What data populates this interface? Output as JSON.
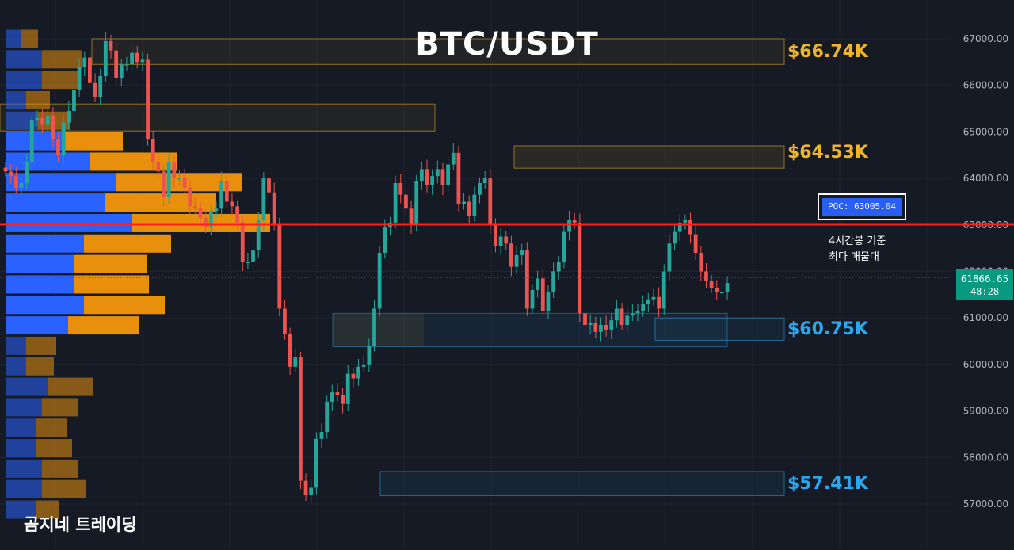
{
  "title": "BTC/USDT",
  "brand": "곰지네 트레이딩",
  "current_price": {
    "price": "61866.65",
    "countdown": "48:28"
  },
  "poc": {
    "label": "POC: 63005.04",
    "value": 63005.04,
    "note_line1": "4시간봉 기준",
    "note_line2": "최다 매물대"
  },
  "levels": [
    {
      "label": "$66.74K",
      "color": "#f0b429"
    },
    {
      "label": "$64.53K",
      "color": "#f0b429"
    },
    {
      "label": "$60.75K",
      "color": "#29a8f0"
    },
    {
      "label": "$57.41K",
      "color": "#29a8f0"
    }
  ],
  "colors": {
    "background": "#161a25",
    "up": "#26a69a",
    "down": "#ef5350",
    "poc_line": "#ff1f1f",
    "vp_up": "#2962ff",
    "vp_down": "#e8900c"
  },
  "chart_data": {
    "type": "candlestick",
    "title": "BTC/USDT",
    "ylim": [
      56700,
      67250
    ],
    "y_ticks": [
      "67000.00",
      "66000.00",
      "65000.00",
      "64000.00",
      "63000.00",
      "62000.00",
      "61000.00",
      "60000.00",
      "59000.00",
      "58000.00",
      "57000.00"
    ],
    "candles_close": [
      64150,
      64050,
      63800,
      63900,
      64350,
      65250,
      65300,
      65150,
      65350,
      64850,
      64500,
      65200,
      65450,
      65900,
      66400,
      66600,
      66050,
      65750,
      66200,
      66950,
      66750,
      66150,
      66450,
      66450,
      66700,
      66500,
      66550,
      64850,
      64350,
      64150,
      63600,
      64350,
      64000,
      64000,
      63800,
      63400,
      63350,
      63150,
      62950,
      63300,
      63350,
      63950,
      63500,
      63400,
      63050,
      62200,
      62200,
      62450,
      63100,
      64000,
      63700,
      63000,
      61200,
      60650,
      59950,
      60150,
      57500,
      57200,
      57350,
      58400,
      58550,
      59200,
      59400,
      59350,
      59150,
      59800,
      59700,
      59950,
      60000,
      60400,
      61200,
      62400,
      62950,
      63050,
      63900,
      63650,
      63350,
      63000,
      63950,
      64200,
      63850,
      64050,
      64200,
      63850,
      64300,
      64550,
      63450,
      63500,
      63200,
      63650,
      63900,
      64000,
      63000,
      62550,
      62750,
      62600,
      62100,
      62350,
      62450,
      61200,
      61600,
      61850,
      61150,
      61550,
      62000,
      62200,
      62850,
      63100,
      63050,
      61100,
      60850,
      60900,
      60700,
      60850,
      60750,
      60950,
      61200,
      60850,
      61050,
      61100,
      61150,
      61300,
      61400,
      61450,
      61200,
      62000,
      62600,
      62850,
      63050,
      63100,
      62800,
      62400,
      62000,
      61800,
      61650,
      61550,
      61550,
      61750
    ],
    "value_area_boxes": [
      {
        "top": 67000,
        "bottom": 66450
      },
      {
        "top": 65600,
        "bottom": 65020
      },
      {
        "top": 64700,
        "bottom": 64220
      },
      {
        "top": 61100,
        "bottom": 60380
      },
      {
        "top": 61000,
        "bottom": 60520
      },
      {
        "top": 57700,
        "bottom": 57180
      }
    ],
    "volume_profile": [
      {
        "price": 67000,
        "buy": 18,
        "sell": 22
      },
      {
        "price": 66560,
        "buy": 45,
        "sell": 50
      },
      {
        "price": 66120,
        "buy": 45,
        "sell": 45
      },
      {
        "price": 65680,
        "buy": 25,
        "sell": 30
      },
      {
        "price": 65240,
        "buy": 40,
        "sell": 40
      },
      {
        "price": 64800,
        "buy": 72,
        "sell": 75
      },
      {
        "price": 64360,
        "buy": 105,
        "sell": 110
      },
      {
        "price": 63920,
        "buy": 138,
        "sell": 160
      },
      {
        "price": 63480,
        "buy": 125,
        "sell": 140
      },
      {
        "price": 63040,
        "buy": 158,
        "sell": 175
      },
      {
        "price": 62600,
        "buy": 98,
        "sell": 110
      },
      {
        "price": 62160,
        "buy": 85,
        "sell": 92
      },
      {
        "price": 61720,
        "buy": 85,
        "sell": 95
      },
      {
        "price": 61280,
        "buy": 98,
        "sell": 102
      },
      {
        "price": 60840,
        "buy": 78,
        "sell": 90
      },
      {
        "price": 60400,
        "buy": 25,
        "sell": 38
      },
      {
        "price": 59960,
        "buy": 25,
        "sell": 35
      },
      {
        "price": 59520,
        "buy": 52,
        "sell": 58
      },
      {
        "price": 59080,
        "buy": 45,
        "sell": 45
      },
      {
        "price": 58640,
        "buy": 38,
        "sell": 38
      },
      {
        "price": 58200,
        "buy": 38,
        "sell": 45
      },
      {
        "price": 57760,
        "buy": 45,
        "sell": 45
      },
      {
        "price": 57320,
        "buy": 45,
        "sell": 55
      },
      {
        "price": 56880,
        "buy": 38,
        "sell": 28
      }
    ]
  }
}
